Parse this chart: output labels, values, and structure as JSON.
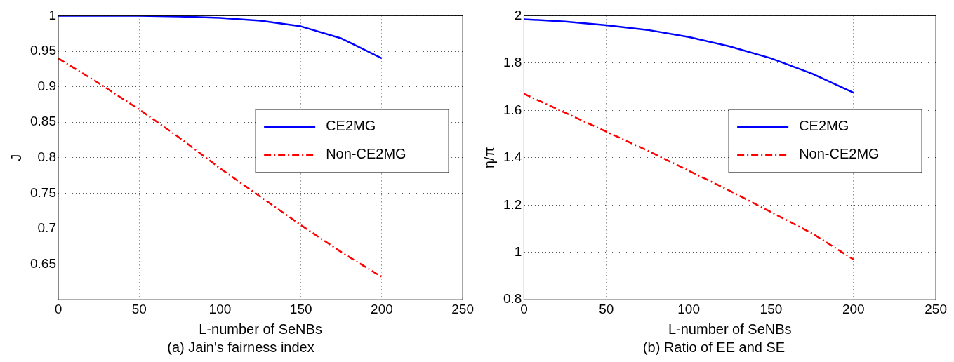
{
  "chart_data": [
    {
      "type": "line",
      "title": "(a) Jain's fairness index",
      "xlabel": "L-number of SeNBs",
      "ylabel": "J",
      "x": [
        0,
        25,
        50,
        75,
        100,
        125,
        150,
        175,
        200
      ],
      "xlim": [
        0,
        250
      ],
      "xticks": [
        0,
        50,
        100,
        150,
        200,
        250
      ],
      "ylim": [
        0.6,
        1
      ],
      "yticks": [
        0.65,
        0.7,
        0.75,
        0.8,
        0.85,
        0.9,
        0.95,
        1
      ],
      "grid": true,
      "legend": "right",
      "marker": "none",
      "series": [
        {
          "name": "CE2MG",
          "color": "#0000ff",
          "line_style": "solid",
          "values": [
            1,
            1,
            1,
            0.999,
            0.997,
            0.993,
            0.985,
            0.968,
            0.94
          ]
        },
        {
          "name": "Non-CE2MG",
          "color": "#ff0000",
          "line_style": "dashdot",
          "values": [
            0.94,
            0.905,
            0.868,
            0.828,
            0.785,
            0.745,
            0.705,
            0.667,
            0.632
          ]
        }
      ]
    },
    {
      "type": "line",
      "title": "(b) Ratio of EE and SE",
      "xlabel": "L-number of SeNBs",
      "ylabel": "η/π",
      "x": [
        0,
        25,
        50,
        75,
        100,
        125,
        150,
        175,
        200
      ],
      "xlim": [
        0,
        250
      ],
      "xticks": [
        0,
        50,
        100,
        150,
        200,
        250
      ],
      "ylim": [
        0.8,
        2
      ],
      "yticks": [
        0.8,
        1,
        1.2,
        1.4,
        1.6,
        1.8,
        2
      ],
      "grid": true,
      "legend": "right",
      "marker": "none",
      "series": [
        {
          "name": "CE2MG",
          "color": "#0000ff",
          "line_style": "solid",
          "values": [
            1.985,
            1.975,
            1.96,
            1.94,
            1.91,
            1.87,
            1.82,
            1.755,
            1.675
          ]
        },
        {
          "name": "Non-CE2MG",
          "color": "#ff0000",
          "line_style": "dashdot",
          "values": [
            1.67,
            1.59,
            1.51,
            1.43,
            1.345,
            1.26,
            1.17,
            1.08,
            0.97
          ]
        }
      ]
    }
  ]
}
